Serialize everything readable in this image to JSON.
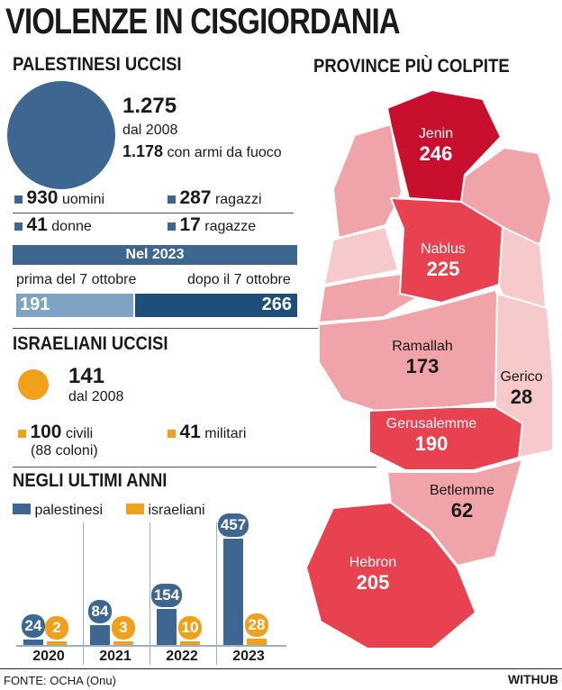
{
  "title": "VIOLENZE IN CISGIORDANIA",
  "palestinians": {
    "heading": "PALESTINESI UCCISI",
    "total": "1.275",
    "since": "dal 2008",
    "firearms_value": "1.178",
    "firearms_label": "con armi da fuoco",
    "men_value": "930",
    "men_label": "uomini",
    "boys_value": "287",
    "boys_label": "ragazzi",
    "women_value": "41",
    "women_label": "donne",
    "girls_value": "17",
    "girls_label": "ragazze",
    "year_banner": "Nel 2023",
    "before_label": "prima del 7 ottobre",
    "after_label": "dopo il 7 ottobre",
    "before_value": 191,
    "after_value": 266
  },
  "israelis": {
    "heading": "ISRAELIANI UCCISI",
    "total": "141",
    "since": "dal 2008",
    "civilians_value": "100",
    "civilians_label": "civili",
    "settlers_note": "(88 coloni)",
    "military_value": "41",
    "military_label": "militari"
  },
  "colors": {
    "palestinians": "#3d6790",
    "palestinians_light": "#7fa3c4",
    "palestinians_dark": "#1f4e7a",
    "israelis": "#f0a11c",
    "map_dark": "#c8102e",
    "map_mid": "#e8414f",
    "map_light": "#f0a3a8",
    "map_pale": "#f6c9cb"
  },
  "chart_data": {
    "type": "bar",
    "title": "NEGLI ULTIMI ANNI",
    "categories": [
      "2020",
      "2021",
      "2022",
      "2023"
    ],
    "series": [
      {
        "name": "palestinesi",
        "values": [
          24,
          84,
          154,
          457
        ]
      },
      {
        "name": "israeliani",
        "values": [
          2,
          3,
          10,
          28
        ]
      }
    ]
  },
  "map": {
    "heading": "PROVINCE PIÙ COLPITE",
    "regions": [
      {
        "name": "Jenin",
        "value": "246"
      },
      {
        "name": "Nablus",
        "value": "225"
      },
      {
        "name": "Ramallah",
        "value": "173"
      },
      {
        "name": "Gerico",
        "value": "28"
      },
      {
        "name": "Gerusalemme",
        "value": "190"
      },
      {
        "name": "Betlemme",
        "value": "62"
      },
      {
        "name": "Hebron",
        "value": "205"
      }
    ]
  },
  "footer": {
    "source": "FONTE: OCHA (Onu)",
    "brand": "WITHUB"
  }
}
